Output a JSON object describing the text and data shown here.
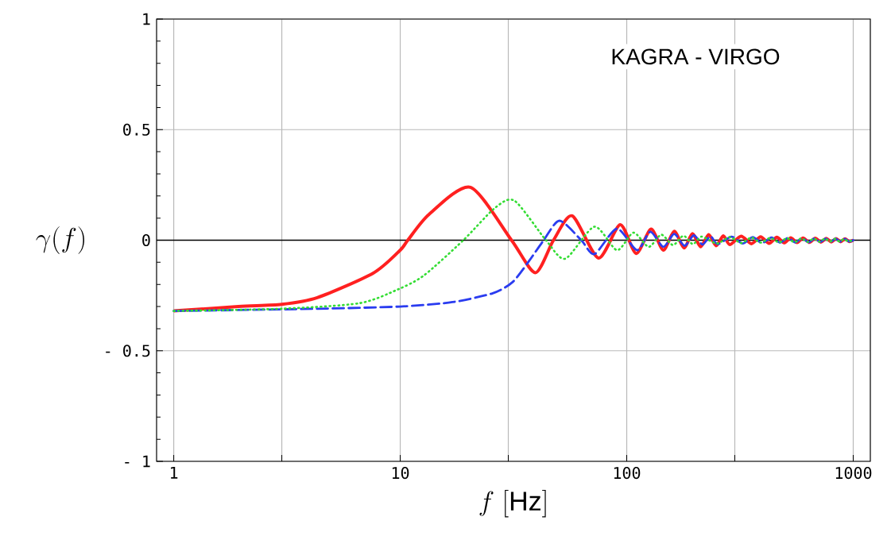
{
  "chart_data": {
    "type": "line",
    "xlabel": "f\\ [\\mathrm{Hz}]",
    "ylabel": "\\gamma(f)",
    "annotations": [
      "KAGRA  - VIRGO"
    ],
    "log": "x",
    "grid": true,
    "marker": "none",
    "xlim": [
      0.84,
      1190
    ],
    "ylim": [
      -1,
      1
    ],
    "xticks": [
      1,
      {
        "value": 3,
        "label": null
      },
      10,
      {
        "value": 30,
        "label": null
      },
      100,
      {
        "value": 300,
        "label": null
      },
      1000
    ],
    "yticks": [
      {
        "value": -1,
        "label": "- 1"
      },
      {
        "value": -0.5,
        "label": "- 0.5"
      },
      0,
      0.5,
      1
    ],
    "ref_lines": [
      {
        "axis": "y",
        "value": 0,
        "color": "#000000"
      }
    ],
    "series": [
      {
        "color": "#ff2020",
        "line_style": "solid",
        "x": [
          1,
          1.93,
          3,
          4.3,
          7.6,
          10,
          10.8,
          13.4,
          20.4,
          31,
          39.5,
          47.5,
          57.5,
          75,
          93.5,
          110,
          128,
          145,
          162,
          179,
          195,
          212,
          230,
          248,
          267,
          285,
          320,
          355,
          390,
          425,
          460,
          495,
          530,
          565,
          600,
          640,
          680,
          720,
          760,
          800,
          840,
          880,
          920,
          960,
          1000
        ],
        "values": [
          -0.32,
          -0.3,
          -0.29,
          -0.26,
          -0.149,
          -0.045,
          0,
          0.117,
          0.239,
          0,
          -0.147,
          0,
          0.11,
          -0.081,
          0.07,
          -0.06,
          0.05,
          -0.045,
          0.04,
          -0.035,
          0.03,
          -0.03,
          0.025,
          -0.025,
          0.02,
          -0.02,
          0.018,
          -0.016,
          0.015,
          -0.014,
          0.013,
          -0.012,
          0.011,
          -0.011,
          0.01,
          -0.01,
          0.009,
          -0.009,
          0.008,
          -0.008,
          0.007,
          -0.007,
          0.006,
          -0.006,
          0
        ]
      },
      {
        "color": "#33dd33",
        "line_style": "dotted",
        "x": [
          1,
          3,
          6.6,
          9.7,
          12.7,
          19,
          26.2,
          32,
          44,
          53.5,
          72,
          90.5,
          107,
          125,
          142,
          160,
          178,
          196,
          214,
          250,
          285,
          320,
          355,
          390,
          430,
          470,
          510,
          550,
          590,
          630,
          670,
          710,
          750,
          790,
          830,
          870,
          910,
          950,
          1000
        ],
        "values": [
          -0.32,
          -0.31,
          -0.285,
          -0.224,
          -0.16,
          0,
          0.146,
          0.178,
          0,
          -0.084,
          0.061,
          -0.045,
          0.034,
          -0.03,
          0.025,
          -0.022,
          0.02,
          -0.018,
          0.016,
          -0.015,
          0.014,
          -0.013,
          0.012,
          -0.011,
          0.01,
          -0.01,
          0.009,
          -0.009,
          0.008,
          -0.008,
          0.007,
          -0.007,
          0.007,
          -0.006,
          0.006,
          -0.006,
          0.005,
          -0.005,
          0
        ]
      },
      {
        "color": "#2a3cf0",
        "line_style": "dashed",
        "x": [
          1,
          4.3,
          10,
          17,
          25.6,
          31.3,
          37,
          43,
          50.5,
          63,
          72,
          90.5,
          111,
          127,
          145,
          162,
          180,
          198,
          216,
          234,
          252,
          290,
          325,
          360,
          395,
          435,
          475,
          515,
          555,
          595,
          635,
          675,
          715,
          755,
          795,
          835,
          875,
          915,
          960,
          1000
        ],
        "values": [
          -0.32,
          -0.31,
          -0.3,
          -0.28,
          -0.24,
          -0.19,
          -0.095,
          0,
          0.088,
          0,
          -0.063,
          0.052,
          -0.045,
          0.038,
          -0.03,
          0.028,
          -0.025,
          0.022,
          -0.02,
          0.018,
          -0.018,
          0.016,
          -0.015,
          0.014,
          -0.013,
          0.012,
          -0.011,
          0.01,
          -0.01,
          0.009,
          -0.009,
          0.008,
          -0.008,
          0.007,
          -0.007,
          0.007,
          -0.006,
          0.006,
          -0.006,
          0
        ]
      }
    ]
  }
}
